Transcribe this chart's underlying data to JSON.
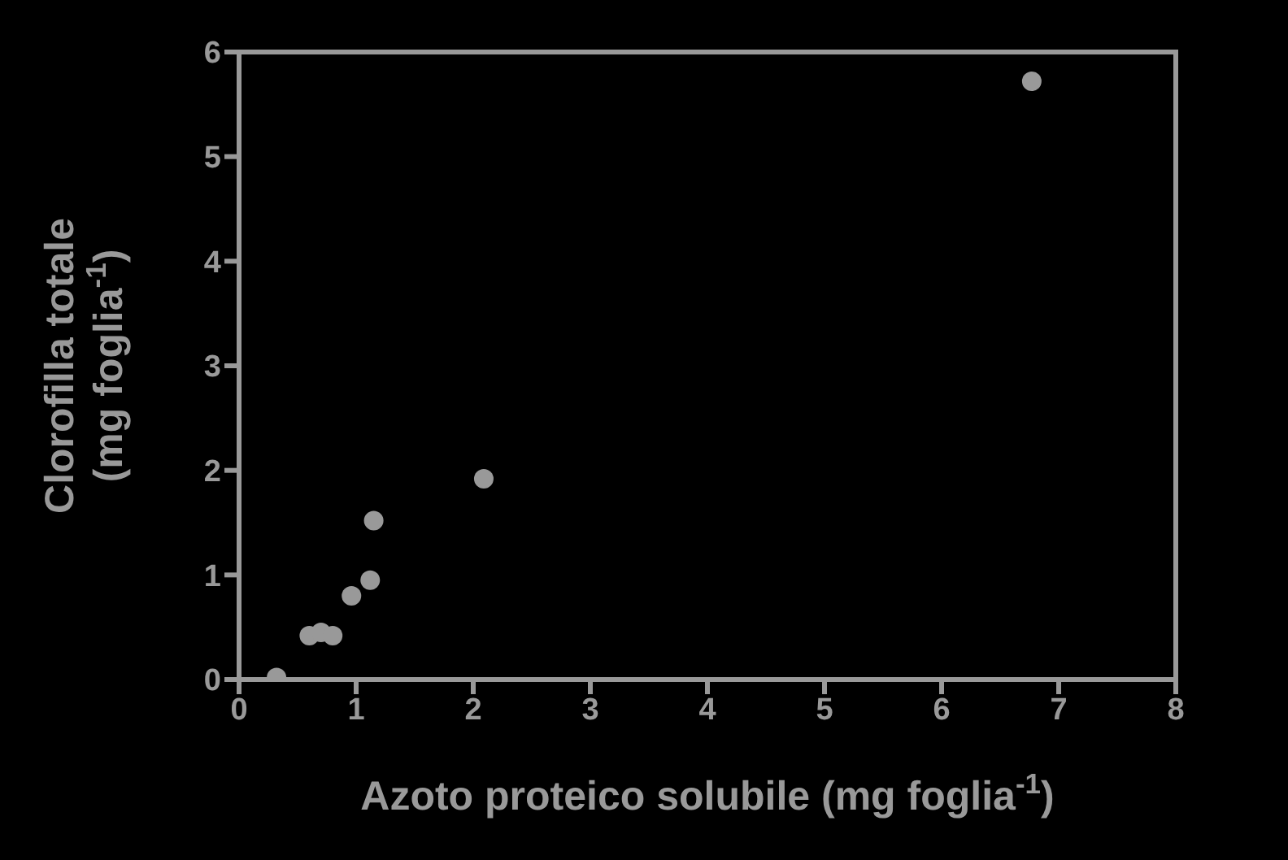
{
  "chart_data": {
    "type": "scatter",
    "xlabel": "Azoto proteico solubile (mg foglia$^{-1}$)",
    "ylabel": "Clorofilla totale\n(mg foglia$^{-1}$)",
    "x": [
      0.32,
      0.6,
      0.7,
      0.8,
      0.96,
      1.12,
      1.15,
      2.09,
      6.77
    ],
    "values": [
      0.02,
      0.42,
      0.45,
      0.42,
      0.8,
      0.95,
      1.52,
      1.92,
      5.72
    ],
    "color": "#999999",
    "marker": "circle",
    "xlim": [
      0,
      8
    ],
    "xticks": [
      0,
      1,
      2,
      3,
      4,
      5,
      6,
      7,
      8
    ],
    "ylim": [
      0,
      6
    ],
    "yticks": [
      0,
      1,
      2,
      3,
      4,
      5,
      6
    ]
  }
}
